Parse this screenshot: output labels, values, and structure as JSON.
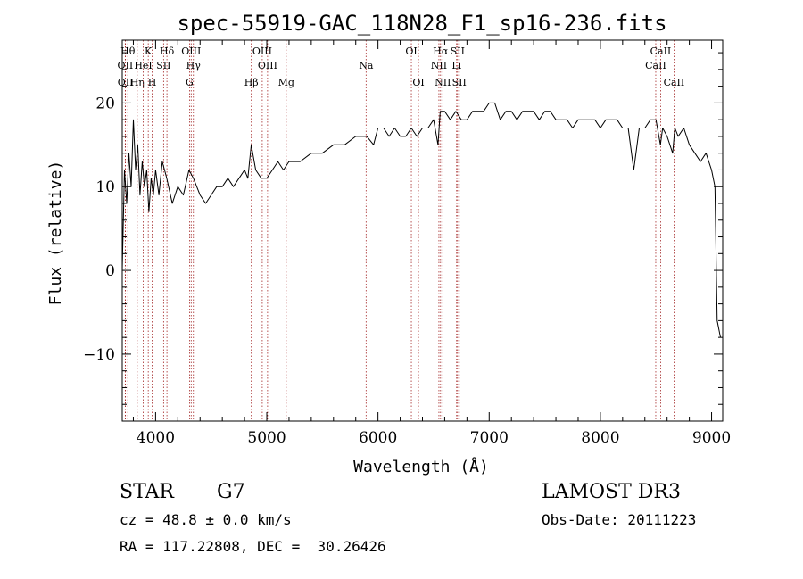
{
  "chart_data": {
    "type": "line",
    "title": "spec-55919-GAC_118N28_F1_sp16-236.fits",
    "xlabel": "Wavelength (Å)",
    "ylabel": "Flux (relative)",
    "xlim": [
      3700,
      9100
    ],
    "ylim": [
      -18,
      27.5
    ],
    "xticks": [
      4000,
      5000,
      6000,
      7000,
      8000,
      9000
    ],
    "yticks": [
      -10,
      0,
      10,
      20
    ],
    "grid": false,
    "line_color": "#000000",
    "marker_color": "#a52a2a",
    "series": [
      {
        "x": [
          3700,
          3720,
          3740,
          3760,
          3780,
          3800,
          3820,
          3840,
          3860,
          3880,
          3900,
          3920,
          3940,
          3960,
          3980,
          4000,
          4030,
          4060,
          4100,
          4150,
          4200,
          4250,
          4300,
          4340,
          4400,
          4450,
          4500,
          4550,
          4600,
          4650,
          4700,
          4750,
          4800,
          4830,
          4860,
          4900,
          4950,
          5000,
          5050,
          5100,
          5150,
          5200,
          5300,
          5400,
          5500,
          5600,
          5700,
          5800,
          5900,
          5960,
          6000,
          6050,
          6100,
          6150,
          6200,
          6250,
          6300,
          6350,
          6400,
          6450,
          6500,
          6540,
          6560,
          6600,
          6650,
          6700,
          6750,
          6800,
          6850,
          6900,
          6950,
          7000,
          7050,
          7100,
          7150,
          7200,
          7250,
          7300,
          7350,
          7400,
          7450,
          7500,
          7550,
          7600,
          7650,
          7700,
          7750,
          7800,
          7850,
          7900,
          7950,
          8000,
          8050,
          8100,
          8150,
          8200,
          8250,
          8300,
          8350,
          8400,
          8450,
          8500,
          8540,
          8560,
          8600,
          8650,
          8670,
          8700,
          8750,
          8800,
          8850,
          8900,
          8950,
          9000,
          9030,
          9050,
          9080
        ],
        "y": [
          0,
          12,
          8,
          14,
          10,
          18,
          12,
          15,
          9,
          13,
          10,
          12,
          7,
          11,
          9,
          12,
          9,
          13,
          11,
          8,
          10,
          9,
          12,
          11,
          9,
          8,
          9,
          10,
          10,
          11,
          10,
          11,
          12,
          11,
          15,
          12,
          11,
          11,
          12,
          13,
          12,
          13,
          13,
          14,
          14,
          15,
          15,
          16,
          16,
          15,
          17,
          17,
          16,
          17,
          16,
          16,
          17,
          16,
          17,
          17,
          18,
          15,
          19,
          19,
          18,
          19,
          18,
          18,
          19,
          19,
          19,
          20,
          20,
          18,
          19,
          19,
          18,
          19,
          19,
          19,
          18,
          19,
          19,
          18,
          18,
          18,
          17,
          18,
          18,
          18,
          18,
          17,
          18,
          18,
          18,
          17,
          17,
          12,
          17,
          17,
          18,
          18,
          15,
          17,
          16,
          14,
          17,
          16,
          17,
          15,
          14,
          13,
          14,
          12,
          10,
          -6,
          -8
        ]
      }
    ],
    "lines": [
      {
        "label": "OII",
        "x": 3727,
        "row": 2
      },
      {
        "label": "OII",
        "x": 3729,
        "row": 3
      },
      {
        "label": "Hθ",
        "x": 3750,
        "row": 1
      },
      {
        "label": "Hη",
        "x": 3835,
        "row": 3
      },
      {
        "label": "HeI",
        "x": 3889,
        "row": 2
      },
      {
        "label": "K",
        "x": 3934,
        "row": 1
      },
      {
        "label": "H",
        "x": 3969,
        "row": 3
      },
      {
        "label": "SII",
        "x": 4072,
        "row": 2
      },
      {
        "label": "Hδ",
        "x": 4102,
        "row": 1
      },
      {
        "label": "OIII",
        "x": 4320,
        "row": 1
      },
      {
        "label": "G",
        "x": 4305,
        "row": 3
      },
      {
        "label": "Hγ",
        "x": 4340,
        "row": 2
      },
      {
        "label": "Hβ",
        "x": 4861,
        "row": 3
      },
      {
        "label": "OIII",
        "x": 4959,
        "row": 1
      },
      {
        "label": "OIII",
        "x": 5007,
        "row": 2
      },
      {
        "label": "Mg",
        "x": 5175,
        "row": 3
      },
      {
        "label": "Na",
        "x": 5893,
        "row": 2
      },
      {
        "label": "OI",
        "x": 6300,
        "row": 1
      },
      {
        "label": "OI",
        "x": 6364,
        "row": 3
      },
      {
        "label": "NII",
        "x": 6548,
        "row": 2
      },
      {
        "label": "Hα",
        "x": 6563,
        "row": 1
      },
      {
        "label": "NII",
        "x": 6583,
        "row": 3
      },
      {
        "label": "Li",
        "x": 6707,
        "row": 2
      },
      {
        "label": "SII",
        "x": 6716,
        "row": 1
      },
      {
        "label": "SII",
        "x": 6731,
        "row": 3
      },
      {
        "label": "CaII",
        "x": 8498,
        "row": 2
      },
      {
        "label": "CaII",
        "x": 8542,
        "row": 1
      },
      {
        "label": "CaII",
        "x": 8662,
        "row": 3
      }
    ]
  },
  "info": {
    "class_label": "STAR",
    "subclass": "G7",
    "survey": "LAMOST DR3",
    "cz": "cz = 48.8 ± 0.0 km/s",
    "obs_date": "Obs-Date: 20111223",
    "radec": "RA = 117.22808, DEC =  30.26426"
  }
}
